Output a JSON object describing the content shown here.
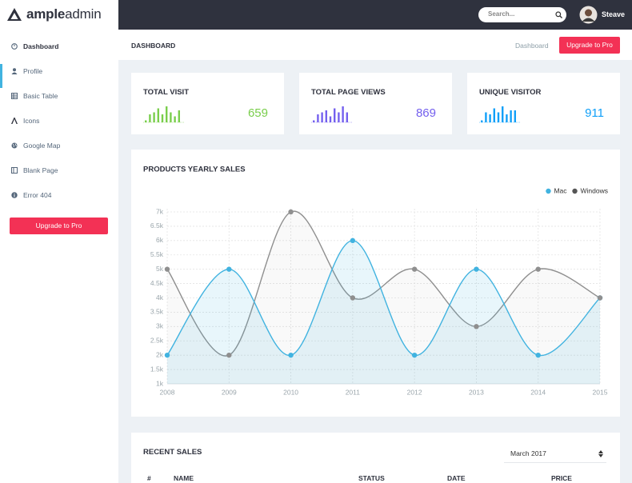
{
  "brand": {
    "bold": "ample",
    "light": "admin"
  },
  "topbar": {
    "search_placeholder": "Search...",
    "user": "Steave"
  },
  "sidebar": {
    "items": [
      "Dashboard",
      "Profile",
      "Basic Table",
      "Icons",
      "Google Map",
      "Blank Page",
      "Error 404"
    ],
    "button": "Upgrade to Pro"
  },
  "page_header": {
    "title": "DASHBOARD",
    "breadcrumb": "Dashboard",
    "button": "Upgrade to Pro"
  },
  "stats": [
    {
      "title": "TOTAL VISIT",
      "value": 659,
      "color": "#7ace4c",
      "bars": [
        1,
        4,
        5,
        7,
        4,
        8,
        5,
        3,
        6
      ]
    },
    {
      "title": "TOTAL PAGE VIEWS",
      "value": 869,
      "color": "#7460ee",
      "bars": [
        1,
        4,
        5,
        6,
        3,
        7,
        5,
        8,
        5
      ]
    },
    {
      "title": "UNIQUE VISITOR",
      "value": 911,
      "color": "#11a0f8",
      "bars": [
        1,
        5,
        4,
        7,
        5,
        8,
        4,
        6,
        6
      ]
    }
  ],
  "chart_data": {
    "type": "line",
    "title": "PRODUCTS YEARLY SALES",
    "x": [
      2008,
      2009,
      2010,
      2011,
      2012,
      2013,
      2014,
      2015
    ],
    "xlim": [
      2008,
      2015
    ],
    "xticks": [
      2008,
      2009,
      2010,
      2011,
      2012,
      2013,
      2014,
      2015
    ],
    "ylim": [
      1000,
      7000
    ],
    "yticks": [
      {
        "value": 1000,
        "label": "1k"
      },
      {
        "value": 1500,
        "label": "1.5k"
      },
      {
        "value": 2000,
        "label": "2k"
      },
      {
        "value": 2500,
        "label": "2.5k"
      },
      {
        "value": 3000,
        "label": "3k"
      },
      {
        "value": 3500,
        "label": "3.5k"
      },
      {
        "value": 4000,
        "label": "4k"
      },
      {
        "value": 4500,
        "label": "4.5k"
      },
      {
        "value": 5000,
        "label": "5k"
      },
      {
        "value": 5500,
        "label": "5.5k"
      },
      {
        "value": 6000,
        "label": "6k"
      },
      {
        "value": 6500,
        "label": "6.5k"
      },
      {
        "value": 7000,
        "label": "7k"
      }
    ],
    "grid": true,
    "smooth": true,
    "legend": "top-right",
    "series": [
      {
        "name": "Mac",
        "color": "#41b3e0",
        "values": [
          2000,
          5000,
          2000,
          6000,
          2000,
          5000,
          2000,
          4000
        ]
      },
      {
        "name": "Windows",
        "color": "#8f8f8f",
        "values": [
          5000,
          2000,
          7000,
          4000,
          5000,
          3000,
          5000,
          4000
        ]
      }
    ]
  },
  "recent_sales": {
    "title": "RECENT SALES",
    "month": "March 2017",
    "columns": [
      "#",
      "NAME",
      "STATUS",
      "DATE",
      "PRICE"
    ]
  }
}
